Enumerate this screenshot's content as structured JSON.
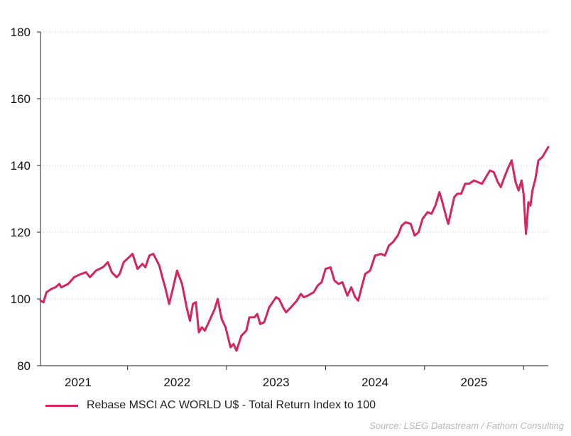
{
  "chart_data": {
    "type": "line",
    "title": "",
    "xlabel": "",
    "ylabel": "",
    "ylim": [
      80,
      180
    ],
    "y_ticks": [
      80,
      100,
      120,
      140,
      160,
      180
    ],
    "x_range": [
      2020.62,
      2025.75
    ],
    "x_tick_labels": [
      {
        "label": "2021",
        "center": 2021.0
      },
      {
        "label": "2022",
        "center": 2022.0
      },
      {
        "label": "2023",
        "center": 2023.0
      },
      {
        "label": "2024",
        "center": 2024.0
      },
      {
        "label": "2025",
        "center": 2025.0
      }
    ],
    "x_separators": [
      2021.5,
      2022.5,
      2023.5,
      2024.5,
      2025.5
    ],
    "grid": true,
    "legend_position": "bottom-left",
    "series": [
      {
        "name": "Rebase MSCI AC WORLD U$ - Total Return Index to 100",
        "color": "#d6245e",
        "points": [
          [
            2020.62,
            99.5
          ],
          [
            2020.65,
            99.0
          ],
          [
            2020.68,
            102.0
          ],
          [
            2020.73,
            103.0
          ],
          [
            2020.77,
            103.5
          ],
          [
            2020.81,
            104.5
          ],
          [
            2020.83,
            103.5
          ],
          [
            2020.9,
            104.5
          ],
          [
            2020.96,
            106.5
          ],
          [
            2021.03,
            107.5
          ],
          [
            2021.08,
            108.0
          ],
          [
            2021.12,
            106.5
          ],
          [
            2021.18,
            108.5
          ],
          [
            2021.25,
            109.5
          ],
          [
            2021.3,
            111.0
          ],
          [
            2021.34,
            108.0
          ],
          [
            2021.39,
            106.5
          ],
          [
            2021.42,
            107.5
          ],
          [
            2021.46,
            111.0
          ],
          [
            2021.55,
            113.5
          ],
          [
            2021.6,
            109.0
          ],
          [
            2021.65,
            110.5
          ],
          [
            2021.68,
            109.5
          ],
          [
            2021.72,
            113.0
          ],
          [
            2021.76,
            113.5
          ],
          [
            2021.82,
            110.0
          ],
          [
            2021.86,
            105.5
          ],
          [
            2021.88,
            103.5
          ],
          [
            2021.92,
            98.5
          ],
          [
            2021.96,
            103.5
          ],
          [
            2022.0,
            108.5
          ],
          [
            2022.05,
            104.5
          ],
          [
            2022.1,
            97.0
          ],
          [
            2022.13,
            93.5
          ],
          [
            2022.16,
            98.5
          ],
          [
            2022.19,
            99.0
          ],
          [
            2022.22,
            90.0
          ],
          [
            2022.25,
            91.5
          ],
          [
            2022.28,
            90.5
          ],
          [
            2022.32,
            93.0
          ],
          [
            2022.38,
            97.0
          ],
          [
            2022.41,
            100.0
          ],
          [
            2022.45,
            94.0
          ],
          [
            2022.49,
            91.5
          ],
          [
            2022.54,
            85.5
          ],
          [
            2022.57,
            86.5
          ],
          [
            2022.6,
            84.5
          ],
          [
            2022.65,
            89.0
          ],
          [
            2022.7,
            90.5
          ],
          [
            2022.73,
            94.5
          ],
          [
            2022.78,
            94.5
          ],
          [
            2022.81,
            95.5
          ],
          [
            2022.84,
            92.5
          ],
          [
            2022.88,
            93.0
          ],
          [
            2022.93,
            97.5
          ],
          [
            2023.0,
            100.5
          ],
          [
            2023.03,
            100.0
          ],
          [
            2023.07,
            97.5
          ],
          [
            2023.1,
            96.0
          ],
          [
            2023.15,
            97.5
          ],
          [
            2023.21,
            99.5
          ],
          [
            2023.25,
            101.5
          ],
          [
            2023.28,
            100.5
          ],
          [
            2023.32,
            101.0
          ],
          [
            2023.38,
            102.0
          ],
          [
            2023.42,
            104.0
          ],
          [
            2023.46,
            105.0
          ],
          [
            2023.5,
            109.0
          ],
          [
            2023.55,
            109.5
          ],
          [
            2023.59,
            105.5
          ],
          [
            2023.63,
            104.5
          ],
          [
            2023.67,
            105.0
          ],
          [
            2023.72,
            101.0
          ],
          [
            2023.76,
            103.5
          ],
          [
            2023.8,
            100.5
          ],
          [
            2023.83,
            99.5
          ],
          [
            2023.86,
            103.0
          ],
          [
            2023.9,
            107.5
          ],
          [
            2023.95,
            108.5
          ],
          [
            2024.0,
            113.0
          ],
          [
            2024.06,
            113.5
          ],
          [
            2024.1,
            113.0
          ],
          [
            2024.14,
            116.0
          ],
          [
            2024.18,
            117.0
          ],
          [
            2024.23,
            119.0
          ],
          [
            2024.27,
            122.0
          ],
          [
            2024.31,
            123.0
          ],
          [
            2024.36,
            122.5
          ],
          [
            2024.4,
            119.0
          ],
          [
            2024.44,
            120.0
          ],
          [
            2024.48,
            124.0
          ],
          [
            2024.53,
            126.0
          ],
          [
            2024.57,
            125.5
          ],
          [
            2024.61,
            128.0
          ],
          [
            2024.65,
            132.0
          ],
          [
            2024.68,
            129.0
          ],
          [
            2024.72,
            124.5
          ],
          [
            2024.74,
            122.5
          ],
          [
            2024.77,
            126.5
          ],
          [
            2024.8,
            130.5
          ],
          [
            2024.83,
            131.5
          ],
          [
            2024.87,
            131.5
          ],
          [
            2024.91,
            134.5
          ],
          [
            2024.95,
            134.5
          ],
          [
            2025.0,
            135.5
          ],
          [
            2025.04,
            135.0
          ],
          [
            2025.08,
            134.5
          ],
          [
            2025.12,
            136.5
          ],
          [
            2025.16,
            138.5
          ],
          [
            2025.2,
            138.0
          ],
          [
            2025.24,
            135.0
          ],
          [
            2025.27,
            133.5
          ],
          [
            2025.3,
            136.0
          ],
          [
            2025.34,
            139.0
          ],
          [
            2025.38,
            141.5
          ],
          [
            2025.42,
            135.0
          ],
          [
            2025.45,
            132.5
          ],
          [
            2025.48,
            135.5
          ],
          [
            2025.5,
            131.5
          ],
          [
            2025.525,
            119.5
          ],
          [
            2025.55,
            129.0
          ],
          [
            2025.57,
            128.0
          ],
          [
            2025.59,
            132.5
          ],
          [
            2025.62,
            136.0
          ],
          [
            2025.65,
            141.5
          ],
          [
            2025.69,
            142.5
          ],
          [
            2025.73,
            144.5
          ],
          [
            2025.75,
            145.5
          ]
        ]
      }
    ]
  },
  "legend": {
    "label": "Rebase MSCI AC WORLD U$ - Total Return Index to 100"
  },
  "source": {
    "text": "Source: LSEG Datastream / Fathom Consulting"
  }
}
